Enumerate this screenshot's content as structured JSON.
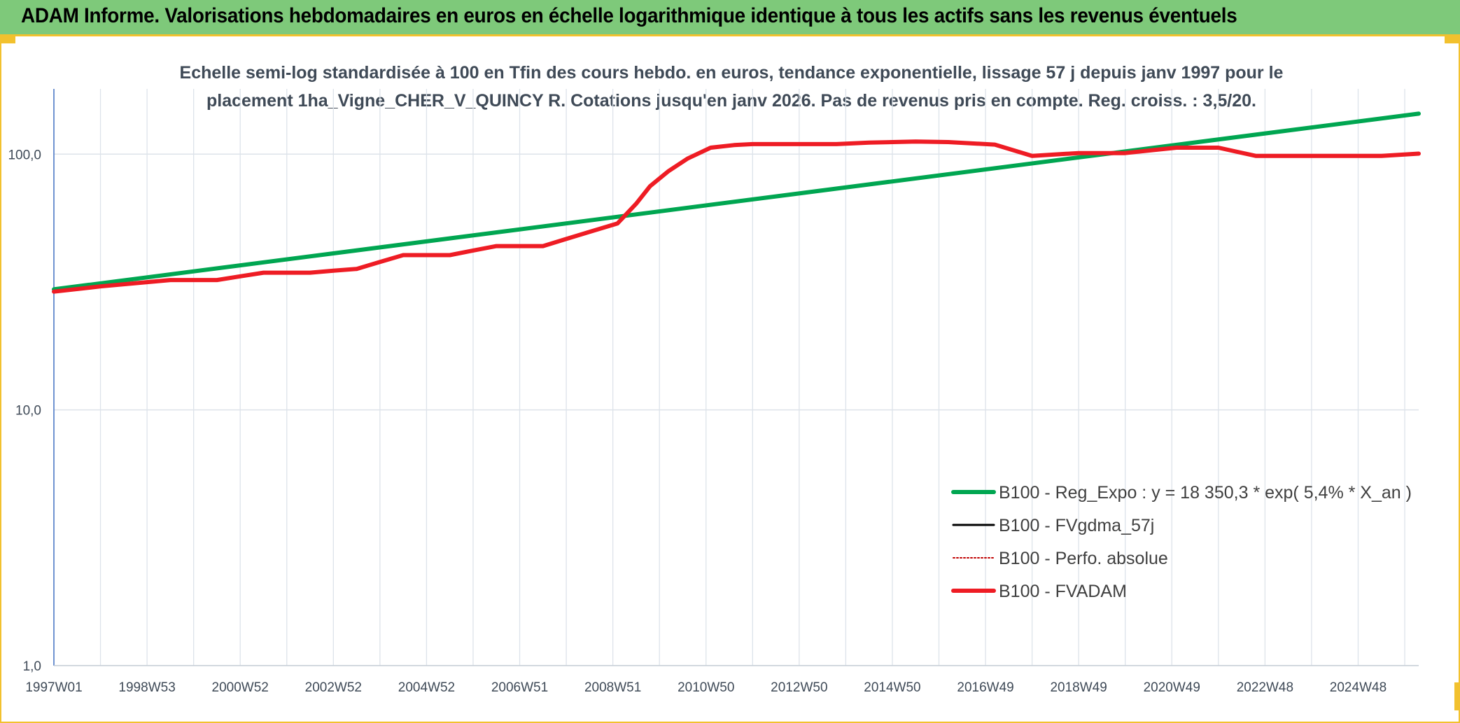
{
  "header": {
    "title": "ADAM Informe. Valorisations hebdomadaires en euros en échelle logarithmique identique à tous les actifs sans les revenus éventuels"
  },
  "colors": {
    "header_bg": "#7ec97a",
    "frame": "#f2c12e",
    "trend": "#00a651",
    "adam": "#ee1c24",
    "gdma": "#000000",
    "perfo": "#c00000",
    "grid": "#dde3ea",
    "text": "#3f4a57"
  },
  "chart_data": {
    "type": "line",
    "title_line1": "Echelle semi-log standardisée à 100 en Tfin des cours hebdo. en euros, tendance exponentielle, lissage 57 j depuis janv 1997 pour le",
    "title_line2": "placement 1ha_Vigne_CHER_V_QUINCY R. Cotations jusqu'en janv 2026. Pas de revenus pris en compte. Reg. croiss. : 3,5/20.",
    "y_scale": "log",
    "ylim": [
      1,
      180
    ],
    "y_ticks": [
      {
        "value": 1,
        "label": "1,0"
      },
      {
        "value": 10,
        "label": "10,0"
      },
      {
        "value": 100,
        "label": "100,0"
      }
    ],
    "xlim": [
      1997.0,
      2026.3
    ],
    "x_ticks": [
      {
        "value": 1997.0,
        "label": "1997W01"
      },
      {
        "value": 1999.0,
        "label": "1998W53"
      },
      {
        "value": 2001.0,
        "label": "2000W52"
      },
      {
        "value": 2003.0,
        "label": "2002W52"
      },
      {
        "value": 2005.0,
        "label": "2004W52"
      },
      {
        "value": 2007.0,
        "label": "2006W51"
      },
      {
        "value": 2009.0,
        "label": "2008W51"
      },
      {
        "value": 2011.0,
        "label": "2010W50"
      },
      {
        "value": 2013.0,
        "label": "2012W50"
      },
      {
        "value": 2015.0,
        "label": "2014W50"
      },
      {
        "value": 2017.0,
        "label": "2016W49"
      },
      {
        "value": 2019.0,
        "label": "2018W49"
      },
      {
        "value": 2021.0,
        "label": "2020W49"
      },
      {
        "value": 2023.0,
        "label": "2022W48"
      },
      {
        "value": 2025.0,
        "label": "2024W48"
      }
    ],
    "legend_position": "bottom-right",
    "series": [
      {
        "name": "B100 - Reg_Expo : y = 18 350,3 * exp( 5,4% *  X_an )",
        "key": "trend",
        "style": "solid-thick",
        "points": [
          [
            1997.0,
            29.6
          ],
          [
            2026.3,
            144
          ]
        ]
      },
      {
        "name": "B100 - FVgdma_57j",
        "key": "gdma",
        "style": "solid-thin",
        "points": []
      },
      {
        "name": "B100 - Perfo. absolue",
        "key": "perfo",
        "style": "dotted",
        "points": []
      },
      {
        "name": "B100 - FVADAM",
        "key": "adam",
        "style": "solid-thick",
        "points": [
          [
            1997.0,
            29.0
          ],
          [
            1998.0,
            30.4
          ],
          [
            1999.0,
            31.6
          ],
          [
            1999.5,
            32.2
          ],
          [
            2000.5,
            32.2
          ],
          [
            2001.0,
            33.3
          ],
          [
            2001.5,
            34.4
          ],
          [
            2002.5,
            34.4
          ],
          [
            2003.0,
            35.0
          ],
          [
            2003.5,
            35.6
          ],
          [
            2004.0,
            37.9
          ],
          [
            2004.5,
            40.3
          ],
          [
            2005.5,
            40.3
          ],
          [
            2006.0,
            42.0
          ],
          [
            2006.5,
            43.7
          ],
          [
            2007.5,
            43.7
          ],
          [
            2008.0,
            46.6
          ],
          [
            2008.5,
            49.7
          ],
          [
            2009.1,
            53.6
          ],
          [
            2009.5,
            64
          ],
          [
            2009.8,
            75
          ],
          [
            2010.2,
            86
          ],
          [
            2010.6,
            96
          ],
          [
            2011.1,
            106
          ],
          [
            2011.6,
            108.5
          ],
          [
            2012.0,
            109.5
          ],
          [
            2013.8,
            109.5
          ],
          [
            2014.5,
            111
          ],
          [
            2015.5,
            112
          ],
          [
            2016.2,
            111.5
          ],
          [
            2017.2,
            109
          ],
          [
            2018.0,
            98.5
          ],
          [
            2019.0,
            101
          ],
          [
            2020.0,
            101
          ],
          [
            2021.1,
            106
          ],
          [
            2022.0,
            106
          ],
          [
            2022.8,
            98.5
          ],
          [
            2025.5,
            98.5
          ],
          [
            2026.3,
            100.5
          ]
        ]
      }
    ]
  }
}
